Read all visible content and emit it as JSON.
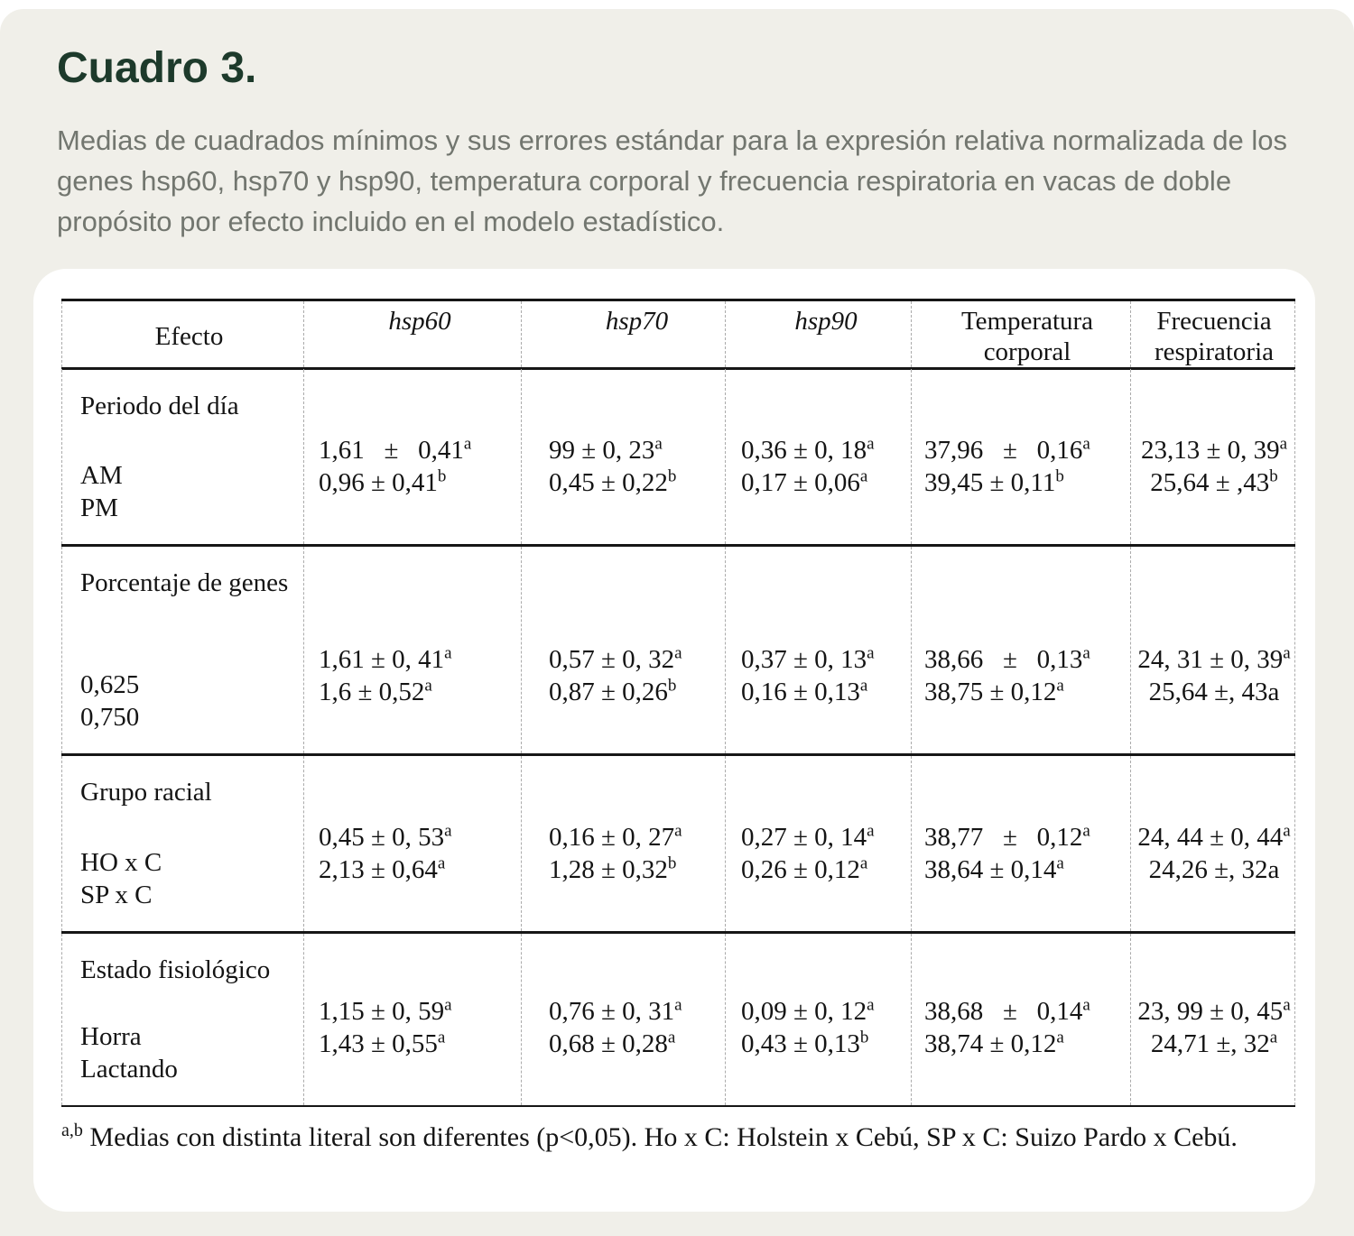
{
  "page": {
    "background_color": "#ffffff",
    "panel_color": "#f0efe9",
    "card_color": "#ffffff",
    "title_color": "#1d3a2b",
    "description_color": "#72766f"
  },
  "header": {
    "title": "Cuadro 3.",
    "description": "Medias de cuadrados mínimos y sus errores estándar para la expresión relativa normalizada de los genes hsp60, hsp70 y hsp90, temperatura corporal y frecuencia respiratoria en vacas de doble propósito por efecto incluido en el modelo estadístico."
  },
  "table": {
    "columns": [
      {
        "label": "Efecto",
        "italic": false
      },
      {
        "label": "hsp60",
        "italic": true
      },
      {
        "label": "hsp70",
        "italic": true
      },
      {
        "label": "hsp90",
        "italic": true
      },
      {
        "label": "Temperatura corporal",
        "italic": false
      },
      {
        "label": "Frecuencia respiratoria",
        "italic": false
      }
    ],
    "sections": [
      {
        "title": "Periodo del día",
        "row_labels": [
          "AM",
          "PM"
        ],
        "cells": [
          [
            {
              "t": "1,61   ±   0,41",
              "s": "a"
            },
            {
              "t": "0,96 ± 0,41",
              "s": "b"
            }
          ],
          [
            {
              "t": "99 ± 0, 23",
              "s": "a"
            },
            {
              "t": "0,45 ± 0,22",
              "s": "b"
            }
          ],
          [
            {
              "t": "0,36 ± 0, 18",
              "s": "a"
            },
            {
              "t": "0,17 ± 0,06",
              "s": "a"
            }
          ],
          [
            {
              "t": "37,96   ±   0,16",
              "s": "a"
            },
            {
              "t": "39,45 ± 0,11",
              "s": "b"
            }
          ],
          [
            {
              "t": "23,13 ± 0, 39",
              "s": "a"
            },
            {
              "t": "25,64 ± ,43",
              "s": "b"
            }
          ]
        ]
      },
      {
        "title": "Porcentaje de genes",
        "row_labels": [
          "0,625",
          "0,750"
        ],
        "cells": [
          [
            {
              "t": "1,61 ± 0, 41",
              "s": "a"
            },
            {
              "t": "1,6 ± 0,52",
              "s": "a"
            }
          ],
          [
            {
              "t": "0,57 ± 0, 32",
              "s": "a"
            },
            {
              "t": "0,87 ± 0,26",
              "s": "b"
            }
          ],
          [
            {
              "t": "0,37 ± 0, 13",
              "s": "a"
            },
            {
              "t": "0,16 ± 0,13",
              "s": "a"
            }
          ],
          [
            {
              "t": "38,66   ±   0,13",
              "s": "a"
            },
            {
              "t": "38,75 ± 0,12",
              "s": "a"
            }
          ],
          [
            {
              "t": "24, 31 ± 0, 39",
              "s": "a"
            },
            {
              "t": "25,64 ±, 43a",
              "s": ""
            }
          ]
        ]
      },
      {
        "title": "Grupo racial",
        "row_labels": [
          "HO x C",
          "SP x C"
        ],
        "cells": [
          [
            {
              "t": "0,45 ± 0, 53",
              "s": "a"
            },
            {
              "t": "2,13 ± 0,64",
              "s": "a"
            }
          ],
          [
            {
              "t": "0,16 ± 0, 27",
              "s": "a"
            },
            {
              "t": "1,28 ± 0,32",
              "s": "b"
            }
          ],
          [
            {
              "t": "0,27 ± 0, 14",
              "s": "a"
            },
            {
              "t": "0,26 ± 0,12",
              "s": "a"
            }
          ],
          [
            {
              "t": "38,77   ±   0,12",
              "s": "a"
            },
            {
              "t": "38,64 ± 0,14",
              "s": "a"
            }
          ],
          [
            {
              "t": "24, 44 ± 0, 44",
              "s": "a"
            },
            {
              "t": "24,26 ±, 32a",
              "s": ""
            }
          ]
        ]
      },
      {
        "title": "Estado fisiológico",
        "row_labels": [
          "Horra",
          "Lactando"
        ],
        "cells": [
          [
            {
              "t": "1,15 ± 0, 59",
              "s": "a"
            },
            {
              "t": "1,43 ± 0,55",
              "s": "a"
            }
          ],
          [
            {
              "t": "0,76 ± 0, 31",
              "s": "a"
            },
            {
              "t": "0,68 ± 0,28",
              "s": "a"
            }
          ],
          [
            {
              "t": "0,09 ± 0, 12",
              "s": "a"
            },
            {
              "t": "0,43 ± 0,13",
              "s": "b"
            }
          ],
          [
            {
              "t": "38,68   ±   0,14",
              "s": "a"
            },
            {
              "t": "38,74 ± 0,12",
              "s": "a"
            }
          ],
          [
            {
              "t": "23, 99 ± 0, 45",
              "s": "a"
            },
            {
              "t": "24,71 ±, 32",
              "s": "a"
            }
          ]
        ]
      }
    ],
    "footnote": {
      "sup": "a,b",
      "text": " Medias con distinta literal son diferentes (p<0,05). Ho x C: Holstein x Cebú, SP x C: Suizo Pardo x Cebú."
    }
  }
}
